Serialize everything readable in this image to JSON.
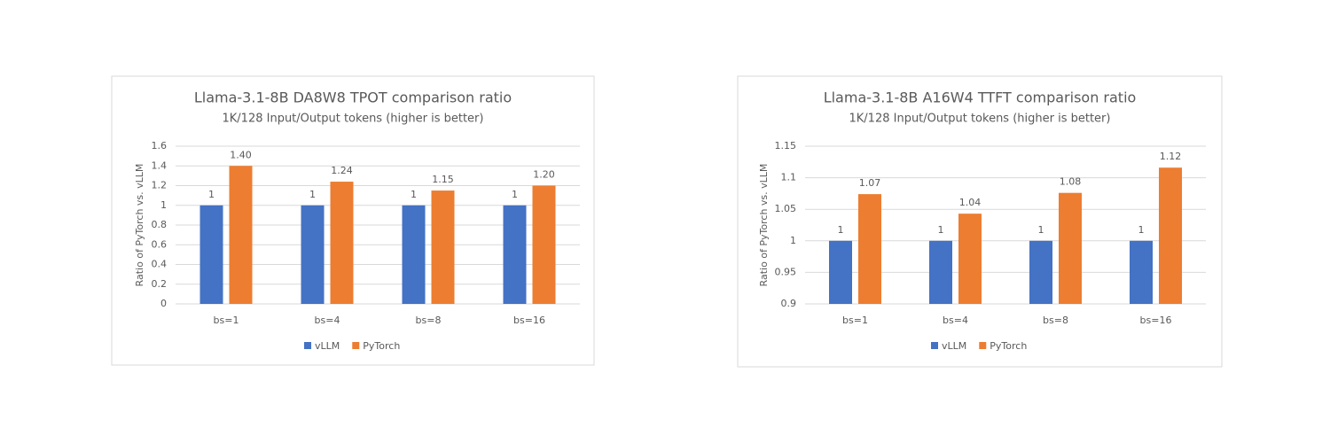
{
  "chart_data": [
    {
      "type": "bar",
      "title": "Llama-3.1-8B DA8W8 TPOT comparison ratio",
      "subtitle": "1K/128 Input/Output tokens (higher is better)",
      "y_label": "Ratio of PyTorch vs. vLLM",
      "categories": [
        "bs=1",
        "bs=4",
        "bs=8",
        "bs=16"
      ],
      "series": [
        {
          "name": "vLLM",
          "color": "#4472c4",
          "values": [
            1,
            1,
            1,
            1
          ]
        },
        {
          "name": "PyTorch",
          "color": "#ed7d31",
          "values": [
            1.4,
            1.24,
            1.15,
            1.2
          ],
          "value_labels": [
            "1.40",
            "1.24",
            "1.15",
            "1.20"
          ]
        }
      ],
      "ylim": [
        0,
        1.6
      ],
      "yticks": [
        0,
        0.2,
        0.4,
        0.6,
        0.8,
        1,
        1.2,
        1.4,
        1.6
      ],
      "grid": true,
      "legend": "bottom"
    },
    {
      "type": "bar",
      "title": "Llama-3.1-8B A16W4 TTFT comparison ratio",
      "subtitle": "1K/128 Input/Output tokens (higher is better)",
      "y_label": "Ratio of PyTorch vs. vLLM",
      "categories": [
        "bs=1",
        "bs=4",
        "bs=8",
        "bs=16"
      ],
      "series": [
        {
          "name": "vLLM",
          "color": "#4472c4",
          "values": [
            1,
            1,
            1,
            1
          ]
        },
        {
          "name": "PyTorch",
          "color": "#ed7d31",
          "values": [
            1.074,
            1.043,
            1.076,
            1.116
          ],
          "value_labels": [
            "1.07",
            "1.04",
            "1.08",
            "1.12"
          ]
        }
      ],
      "ylim": [
        0.9,
        1.15
      ],
      "yticks": [
        0.9,
        0.95,
        1,
        1.05,
        1.1,
        1.15
      ],
      "grid": true,
      "legend": "bottom"
    }
  ]
}
